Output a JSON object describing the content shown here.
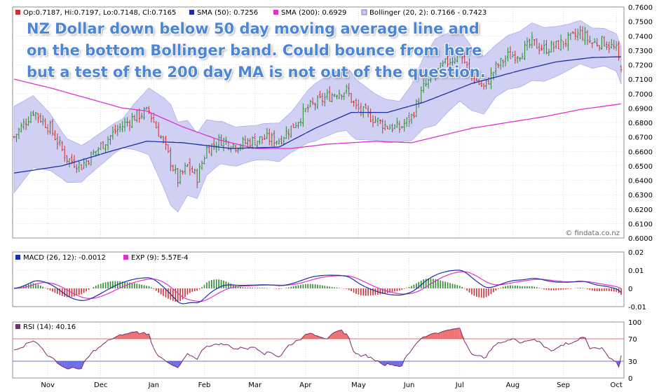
{
  "annotation": "NZ Dollar down below 50 day moving average line and on the bottom Bollinger band. Could bounce from here but a test of the 200 day MA is not out of the question.",
  "watermark": "© findata.co.nz",
  "colors": {
    "up_bar": "#2a8a2a",
    "down_bar": "#c83232",
    "sma50": "#1c2fa6",
    "sma200": "#dd33cc",
    "bollinger_fill": "#c8c8f2",
    "bollinger_edge": "#a0a0dc",
    "macd": "#1c2fa6",
    "signal": "#dd33cc",
    "hist_pos": "#2a8a2a",
    "hist_neg": "#c83232",
    "rsi": "#7a2a6a",
    "rsi_over": "#e85050",
    "rsi_under": "#4a4ae0",
    "grid": "#c8c8c8"
  },
  "chart_data": [
    {
      "type": "bar",
      "subtype": "ohlc-daily",
      "legend": {
        "ohlc": "Op:0.7187, Hi:0.7197, Lo:0.7148, Cl:0.7165",
        "sma50": "SMA (50): 0.7256",
        "sma200": "SMA (200): 0.6929",
        "bollinger": "Bollinger (20, 2): 0.7166 - 0.7423"
      },
      "ylim": [
        0.6,
        0.76
      ],
      "yticks": [
        "0.7600",
        "0.7500",
        "0.7400",
        "0.7300",
        "0.7200",
        "0.7100",
        "0.7000",
        "0.6900",
        "0.6800",
        "0.6700",
        "0.6600",
        "0.6500",
        "0.6400",
        "0.6300",
        "0.6200",
        "0.6100",
        "0.6000"
      ],
      "x_months": [
        "Nov",
        "Dec",
        "Jan",
        "Feb",
        "Mar",
        "Apr",
        "May",
        "Jun",
        "Jul",
        "Aug",
        "Sep",
        "Oct"
      ],
      "close_path": [
        [
          0,
          0.67
        ],
        [
          8,
          0.688
        ],
        [
          15,
          0.676
        ],
        [
          22,
          0.655
        ],
        [
          28,
          0.65
        ],
        [
          35,
          0.662
        ],
        [
          42,
          0.674
        ],
        [
          50,
          0.684
        ],
        [
          56,
          0.688
        ],
        [
          62,
          0.666
        ],
        [
          68,
          0.64
        ],
        [
          72,
          0.65
        ],
        [
          76,
          0.642
        ],
        [
          80,
          0.662
        ],
        [
          86,
          0.668
        ],
        [
          92,
          0.664
        ],
        [
          98,
          0.667
        ],
        [
          104,
          0.669
        ],
        [
          110,
          0.668
        ],
        [
          116,
          0.678
        ],
        [
          122,
          0.69
        ],
        [
          128,
          0.696
        ],
        [
          134,
          0.701
        ],
        [
          138,
          0.702
        ],
        [
          142,
          0.69
        ],
        [
          148,
          0.684
        ],
        [
          154,
          0.678
        ],
        [
          160,
          0.676
        ],
        [
          165,
          0.684
        ],
        [
          170,
          0.704
        ],
        [
          175,
          0.714
        ],
        [
          180,
          0.722
        ],
        [
          185,
          0.728
        ],
        [
          190,
          0.712
        ],
        [
          195,
          0.704
        ],
        [
          200,
          0.718
        ],
        [
          205,
          0.726
        ],
        [
          210,
          0.728
        ],
        [
          215,
          0.735
        ],
        [
          220,
          0.731
        ],
        [
          225,
          0.733
        ],
        [
          230,
          0.737
        ],
        [
          235,
          0.742
        ],
        [
          240,
          0.735
        ],
        [
          245,
          0.736
        ],
        [
          250,
          0.73
        ],
        [
          252,
          0.7165
        ]
      ],
      "sma50_path": [
        [
          0,
          0.645
        ],
        [
          20,
          0.65
        ],
        [
          40,
          0.66
        ],
        [
          55,
          0.667
        ],
        [
          70,
          0.666
        ],
        [
          90,
          0.662
        ],
        [
          110,
          0.663
        ],
        [
          125,
          0.676
        ],
        [
          140,
          0.687
        ],
        [
          155,
          0.687
        ],
        [
          170,
          0.694
        ],
        [
          190,
          0.707
        ],
        [
          210,
          0.716
        ],
        [
          225,
          0.722
        ],
        [
          240,
          0.725
        ],
        [
          252,
          0.7256
        ]
      ],
      "sma200_path": [
        [
          0,
          0.71
        ],
        [
          15,
          0.704
        ],
        [
          30,
          0.697
        ],
        [
          45,
          0.69
        ],
        [
          55,
          0.688
        ],
        [
          70,
          0.677
        ],
        [
          85,
          0.668
        ],
        [
          100,
          0.662
        ],
        [
          115,
          0.662
        ],
        [
          130,
          0.665
        ],
        [
          150,
          0.667
        ],
        [
          165,
          0.666
        ],
        [
          175,
          0.67
        ],
        [
          190,
          0.676
        ],
        [
          205,
          0.68
        ],
        [
          220,
          0.684
        ],
        [
          235,
          0.689
        ],
        [
          252,
          0.6929
        ]
      ],
      "bollinger_half_width": [
        [
          0,
          0.03
        ],
        [
          8,
          0.025
        ],
        [
          20,
          0.016
        ],
        [
          30,
          0.012
        ],
        [
          45,
          0.01
        ],
        [
          55,
          0.022
        ],
        [
          65,
          0.035
        ],
        [
          72,
          0.026
        ],
        [
          85,
          0.015
        ],
        [
          100,
          0.012
        ],
        [
          115,
          0.014
        ],
        [
          125,
          0.02
        ],
        [
          140,
          0.022
        ],
        [
          150,
          0.016
        ],
        [
          160,
          0.014
        ],
        [
          175,
          0.03
        ],
        [
          190,
          0.022
        ],
        [
          200,
          0.018
        ],
        [
          215,
          0.02
        ],
        [
          230,
          0.016
        ],
        [
          245,
          0.013
        ],
        [
          252,
          0.013
        ]
      ]
    },
    {
      "type": "bar",
      "subtype": "macd",
      "legend": {
        "macd": "MACD (26, 12): -0.0012",
        "signal": "EXP (9): 5.57E-4"
      },
      "ylim": [
        -0.01,
        0.02
      ],
      "yticks": [
        "0.02",
        "0.01",
        "0",
        "-0.01"
      ]
    },
    {
      "type": "line",
      "subtype": "rsi",
      "legend": {
        "rsi": "RSI (14): 40.16"
      },
      "ylim": [
        0,
        100
      ],
      "yticks": [
        "100",
        "70",
        "30",
        "0"
      ],
      "levels": [
        70,
        30
      ]
    }
  ]
}
